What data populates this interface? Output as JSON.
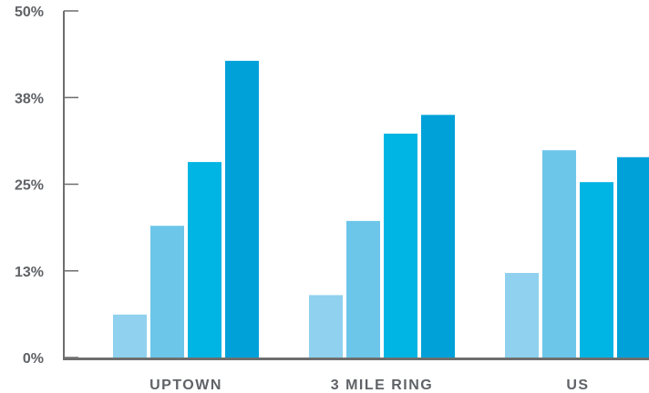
{
  "chart_data": {
    "type": "bar",
    "title": "",
    "xlabel": "",
    "ylabel": "",
    "categories": [
      "UPTOWN",
      "3 MILE RING",
      "US"
    ],
    "series": [
      {
        "values": [
          6.2,
          9.0,
          12.2
        ]
      },
      {
        "values": [
          19.0,
          19.7,
          29.9
        ]
      },
      {
        "values": [
          28.2,
          32.3,
          25.3
        ]
      },
      {
        "values": [
          42.8,
          35.0,
          28.9
        ]
      }
    ],
    "ylim": [
      0,
      50
    ],
    "yticks": [
      0,
      12.5,
      25,
      37.5,
      50
    ],
    "ytick_labels": [
      "0%",
      "13%",
      "25%",
      "38%",
      "50%"
    ],
    "grid": false,
    "legend": "none"
  },
  "colors": {
    "series": [
      "#8fd1ee",
      "#6cc6ea",
      "#00b4e3",
      "#00a1d9"
    ],
    "axis": "#6e6e6e",
    "text": "#5f6266"
  }
}
